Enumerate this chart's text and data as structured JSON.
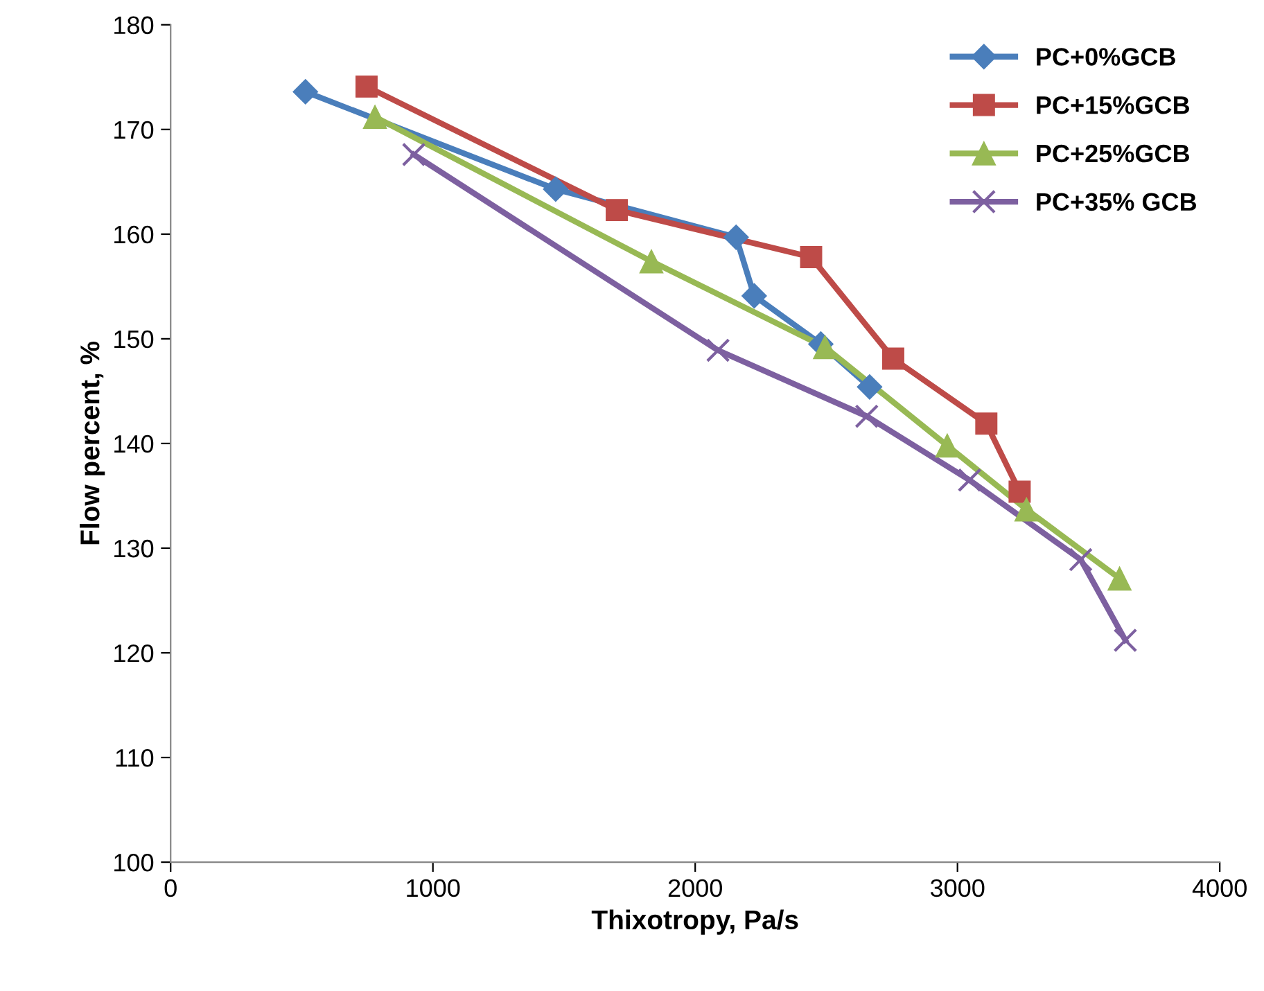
{
  "chart_data": {
    "type": "line",
    "xlabel": "Thixotropy, Pa/s",
    "ylabel": "Flow percent, %",
    "xlim": [
      0,
      4000
    ],
    "xticks": [
      0,
      1000,
      2000,
      3000,
      4000
    ],
    "ylim": [
      100,
      180
    ],
    "yticks": [
      100,
      110,
      120,
      130,
      140,
      150,
      160,
      170,
      180
    ],
    "grid": false,
    "legend": "top right",
    "series": [
      {
        "name": "PC+0%GCB",
        "color": "#4a7ebb",
        "marker": "diamond",
        "x": [
          514,
          1468,
          2156,
          2225,
          2479,
          2665
        ],
        "values": [
          173.6,
          164.3,
          159.7,
          154.1,
          149.5,
          145.4
        ]
      },
      {
        "name": "PC+15%GCB",
        "color": "#be4b48",
        "marker": "square",
        "x": [
          747,
          1701,
          2442,
          2755,
          3110,
          3237
        ],
        "values": [
          174.1,
          162.3,
          157.8,
          148.1,
          141.9,
          135.4
        ]
      },
      {
        "name": "PC+25%GCB",
        "color": "#98b954",
        "marker": "triangle",
        "x": [
          779,
          1833,
          2495,
          2961,
          3263,
          3618
        ],
        "values": [
          171.2,
          157.4,
          149.2,
          139.8,
          133.7,
          127.1
        ]
      },
      {
        "name": "PC+35% GCB",
        "color": "#7d60a0",
        "marker": "cross",
        "x": [
          927,
          2087,
          2654,
          3046,
          3470,
          3640
        ],
        "values": [
          167.6,
          148.9,
          142.6,
          136.5,
          128.9,
          121.2
        ]
      }
    ]
  }
}
